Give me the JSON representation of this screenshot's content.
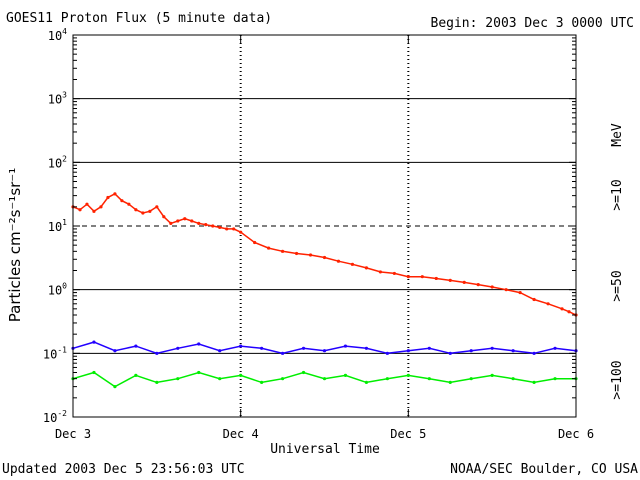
{
  "chart_data": {
    "type": "line",
    "title": "GOES11 Proton Flux (5 minute data)",
    "begin_label": "Begin: 2003 Dec 3 0000 UTC",
    "xlabel": "Universal Time",
    "ylabel": "Particles cm⁻²s⁻¹sr⁻¹",
    "x_ticks": [
      "Dec 3",
      "Dec 4",
      "Dec 5",
      "Dec 6"
    ],
    "xlim": [
      0,
      72
    ],
    "x_units": "hours since 2003 Dec 3 0000 UTC",
    "y_scale": "log",
    "ylim": [
      0.01,
      10000
    ],
    "y_ticks": [
      {
        "value": 0.01,
        "base": "10",
        "exp": "-2"
      },
      {
        "value": 0.1,
        "base": "10",
        "exp": "-1"
      },
      {
        "value": 1,
        "base": "10",
        "exp": "0"
      },
      {
        "value": 10,
        "base": "10",
        "exp": "1"
      },
      {
        "value": 100,
        "base": "10",
        "exp": "2"
      },
      {
        "value": 1000,
        "base": "10",
        "exp": "3"
      },
      {
        "value": 10000,
        "base": "10",
        "exp": "4"
      }
    ],
    "thresholds": [
      {
        "value": 10,
        "style": "dashed"
      },
      {
        "value": 1,
        "style": "solid"
      },
      {
        "value": 0.1,
        "style": "solid"
      },
      {
        "value": 100,
        "style": "solid"
      },
      {
        "value": 1000,
        "style": "solid"
      }
    ],
    "units_label": "MeV",
    "series": [
      {
        "name": ">=10",
        "color": "#ff2200",
        "x": [
          0,
          1,
          2,
          3,
          4,
          5,
          6,
          7,
          8,
          9,
          10,
          11,
          12,
          13,
          14,
          15,
          16,
          17,
          18,
          19,
          20,
          21,
          22,
          23,
          24,
          26,
          28,
          30,
          32,
          34,
          36,
          38,
          40,
          42,
          44,
          46,
          48,
          50,
          52,
          54,
          56,
          58,
          60,
          62,
          64,
          66,
          68,
          70,
          71,
          72
        ],
        "values": [
          20,
          18,
          22,
          17,
          20,
          28,
          32,
          25,
          22,
          18,
          16,
          17,
          20,
          14,
          11,
          12,
          13,
          12,
          11,
          10.5,
          10,
          9.5,
          9,
          9,
          8,
          5.5,
          4.5,
          4,
          3.7,
          3.5,
          3.2,
          2.8,
          2.5,
          2.2,
          1.9,
          1.8,
          1.6,
          1.6,
          1.5,
          1.4,
          1.3,
          1.2,
          1.1,
          1.0,
          0.9,
          0.7,
          0.6,
          0.5,
          0.45,
          0.4
        ]
      },
      {
        "name": ">=50",
        "color": "#2200ff",
        "x": [
          0,
          3,
          6,
          9,
          12,
          15,
          18,
          21,
          24,
          27,
          30,
          33,
          36,
          39,
          42,
          45,
          48,
          51,
          54,
          57,
          60,
          63,
          66,
          69,
          72
        ],
        "values": [
          0.12,
          0.15,
          0.11,
          0.13,
          0.1,
          0.12,
          0.14,
          0.11,
          0.13,
          0.12,
          0.1,
          0.12,
          0.11,
          0.13,
          0.12,
          0.1,
          0.11,
          0.12,
          0.1,
          0.11,
          0.12,
          0.11,
          0.1,
          0.12,
          0.11
        ]
      },
      {
        "name": ">=100",
        "color": "#00ee00",
        "x": [
          0,
          3,
          6,
          9,
          12,
          15,
          18,
          21,
          24,
          27,
          30,
          33,
          36,
          39,
          42,
          45,
          48,
          51,
          54,
          57,
          60,
          63,
          66,
          69,
          72
        ],
        "values": [
          0.04,
          0.05,
          0.03,
          0.045,
          0.035,
          0.04,
          0.05,
          0.04,
          0.045,
          0.035,
          0.04,
          0.05,
          0.04,
          0.045,
          0.035,
          0.04,
          0.045,
          0.04,
          0.035,
          0.04,
          0.045,
          0.04,
          0.035,
          0.04,
          0.04
        ]
      }
    ]
  },
  "footer": {
    "updated": "Updated 2003 Dec  5 23:56:03 UTC",
    "credit": "NOAA/SEC Boulder, CO USA"
  }
}
